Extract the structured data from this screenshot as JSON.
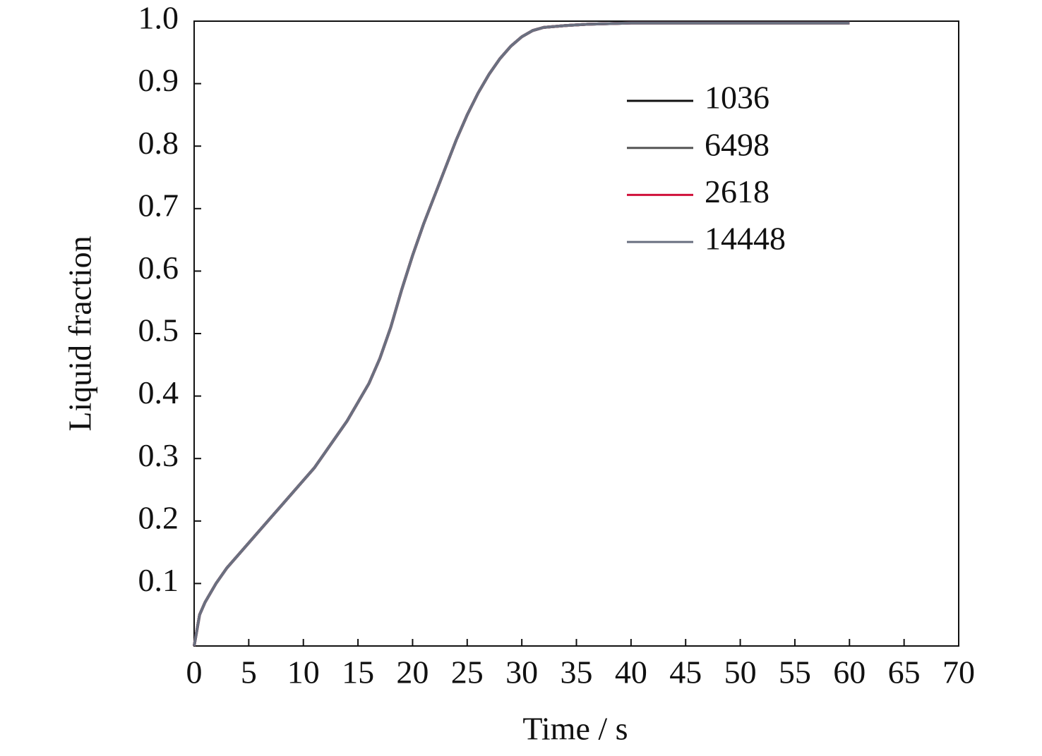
{
  "chart_data": {
    "type": "line",
    "x_label": "Time / s",
    "y_label": "Liquid fraction",
    "x": [
      0,
      0.5,
      1,
      2,
      3,
      4,
      5,
      6,
      7,
      8,
      9,
      10,
      11,
      12,
      13,
      14,
      15,
      16,
      17,
      18,
      19,
      20,
      21,
      22,
      23,
      24,
      25,
      26,
      27,
      28,
      29,
      30,
      31,
      32,
      34,
      36,
      40,
      50,
      60
    ],
    "series": [
      {
        "name": "1036",
        "color": "#111111",
        "values": [
          0,
          0.05,
          0.07,
          0.1,
          0.125,
          0.145,
          0.165,
          0.185,
          0.205,
          0.225,
          0.245,
          0.265,
          0.285,
          0.31,
          0.335,
          0.36,
          0.39,
          0.42,
          0.46,
          0.51,
          0.57,
          0.625,
          0.675,
          0.72,
          0.765,
          0.81,
          0.85,
          0.885,
          0.915,
          0.94,
          0.96,
          0.975,
          0.985,
          0.99,
          0.993,
          0.995,
          0.997,
          0.997,
          0.997
        ]
      },
      {
        "name": "6498",
        "color": "#555555",
        "values": [
          0,
          0.05,
          0.07,
          0.1,
          0.125,
          0.145,
          0.165,
          0.185,
          0.205,
          0.225,
          0.245,
          0.265,
          0.285,
          0.31,
          0.335,
          0.36,
          0.39,
          0.42,
          0.46,
          0.51,
          0.57,
          0.625,
          0.675,
          0.72,
          0.765,
          0.81,
          0.85,
          0.885,
          0.915,
          0.94,
          0.96,
          0.975,
          0.985,
          0.99,
          0.993,
          0.995,
          0.997,
          0.997,
          0.997
        ]
      },
      {
        "name": "2618",
        "color": "#d0103a",
        "values": [
          0,
          0.05,
          0.07,
          0.1,
          0.125,
          0.145,
          0.165,
          0.185,
          0.205,
          0.225,
          0.245,
          0.265,
          0.285,
          0.31,
          0.335,
          0.36,
          0.39,
          0.42,
          0.46,
          0.51,
          0.57,
          0.625,
          0.675,
          0.72,
          0.765,
          0.81,
          0.85,
          0.885,
          0.915,
          0.94,
          0.96,
          0.975,
          0.985,
          0.99,
          0.993,
          0.995,
          0.997,
          0.997,
          0.997
        ]
      },
      {
        "name": "14448",
        "color": "#6a7080",
        "values": [
          0,
          0.05,
          0.07,
          0.1,
          0.125,
          0.145,
          0.165,
          0.185,
          0.205,
          0.225,
          0.245,
          0.265,
          0.285,
          0.31,
          0.335,
          0.36,
          0.39,
          0.42,
          0.46,
          0.51,
          0.57,
          0.625,
          0.675,
          0.72,
          0.765,
          0.81,
          0.85,
          0.885,
          0.915,
          0.94,
          0.96,
          0.975,
          0.985,
          0.99,
          0.993,
          0.995,
          0.997,
          0.997,
          0.997
        ]
      }
    ],
    "xlim": [
      0,
      70
    ],
    "xticks": [
      0,
      5,
      10,
      15,
      20,
      25,
      30,
      35,
      40,
      45,
      50,
      55,
      60,
      65,
      70
    ],
    "ylim": [
      0,
      1
    ],
    "yticks": [
      0.1,
      0.2,
      0.3,
      0.4,
      0.5,
      0.6,
      0.7,
      0.8,
      0.9,
      {
        "value": 1,
        "label": "1.0"
      }
    ],
    "grid": false,
    "legend": "upper-right"
  }
}
